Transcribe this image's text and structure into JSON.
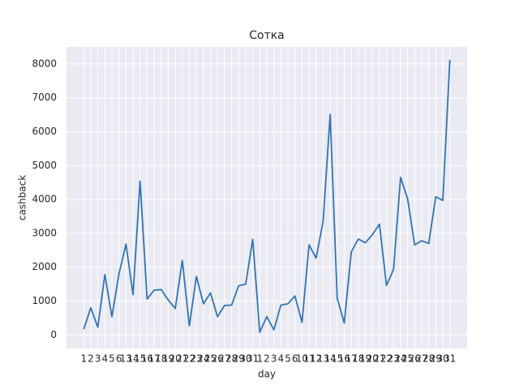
{
  "chart_data": {
    "type": "line",
    "title": "Сотка",
    "x_label": "day",
    "y_label": "cashback",
    "categories": [
      "1",
      "2",
      "3",
      "4",
      "5",
      "6",
      "13",
      "14",
      "15",
      "16",
      "17",
      "18",
      "19",
      "20",
      "21",
      "22",
      "23",
      "24",
      "25",
      "26",
      "27",
      "28",
      "29",
      "30",
      "31",
      "1",
      "2",
      "3",
      "4",
      "5",
      "6",
      "10",
      "11",
      "12",
      "13",
      "14",
      "15",
      "16",
      "17",
      "18",
      "19",
      "20",
      "21",
      "22",
      "23",
      "24",
      "25",
      "26",
      "27",
      "28",
      "29",
      "30",
      "31"
    ],
    "series": [
      {
        "name": "cashback",
        "color": "#3274b0",
        "values": [
          170,
          800,
          230,
          1780,
          540,
          1800,
          2680,
          1190,
          4540,
          1060,
          1320,
          1340,
          1030,
          780,
          2200,
          270,
          1730,
          920,
          1240,
          540,
          870,
          880,
          1450,
          1500,
          2820,
          80,
          540,
          150,
          880,
          920,
          1150,
          370,
          2660,
          2270,
          3350,
          6510,
          1080,
          350,
          2450,
          2830,
          2720,
          2960,
          3270,
          1460,
          1930,
          4650,
          4020,
          2660,
          2780,
          2700,
          4080,
          3970,
          8120
        ]
      }
    ],
    "ylim": [
      -400,
      8500
    ],
    "yticks": [
      0,
      1000,
      2000,
      3000,
      4000,
      5000,
      6000,
      7000,
      8000
    ],
    "grid": true
  }
}
